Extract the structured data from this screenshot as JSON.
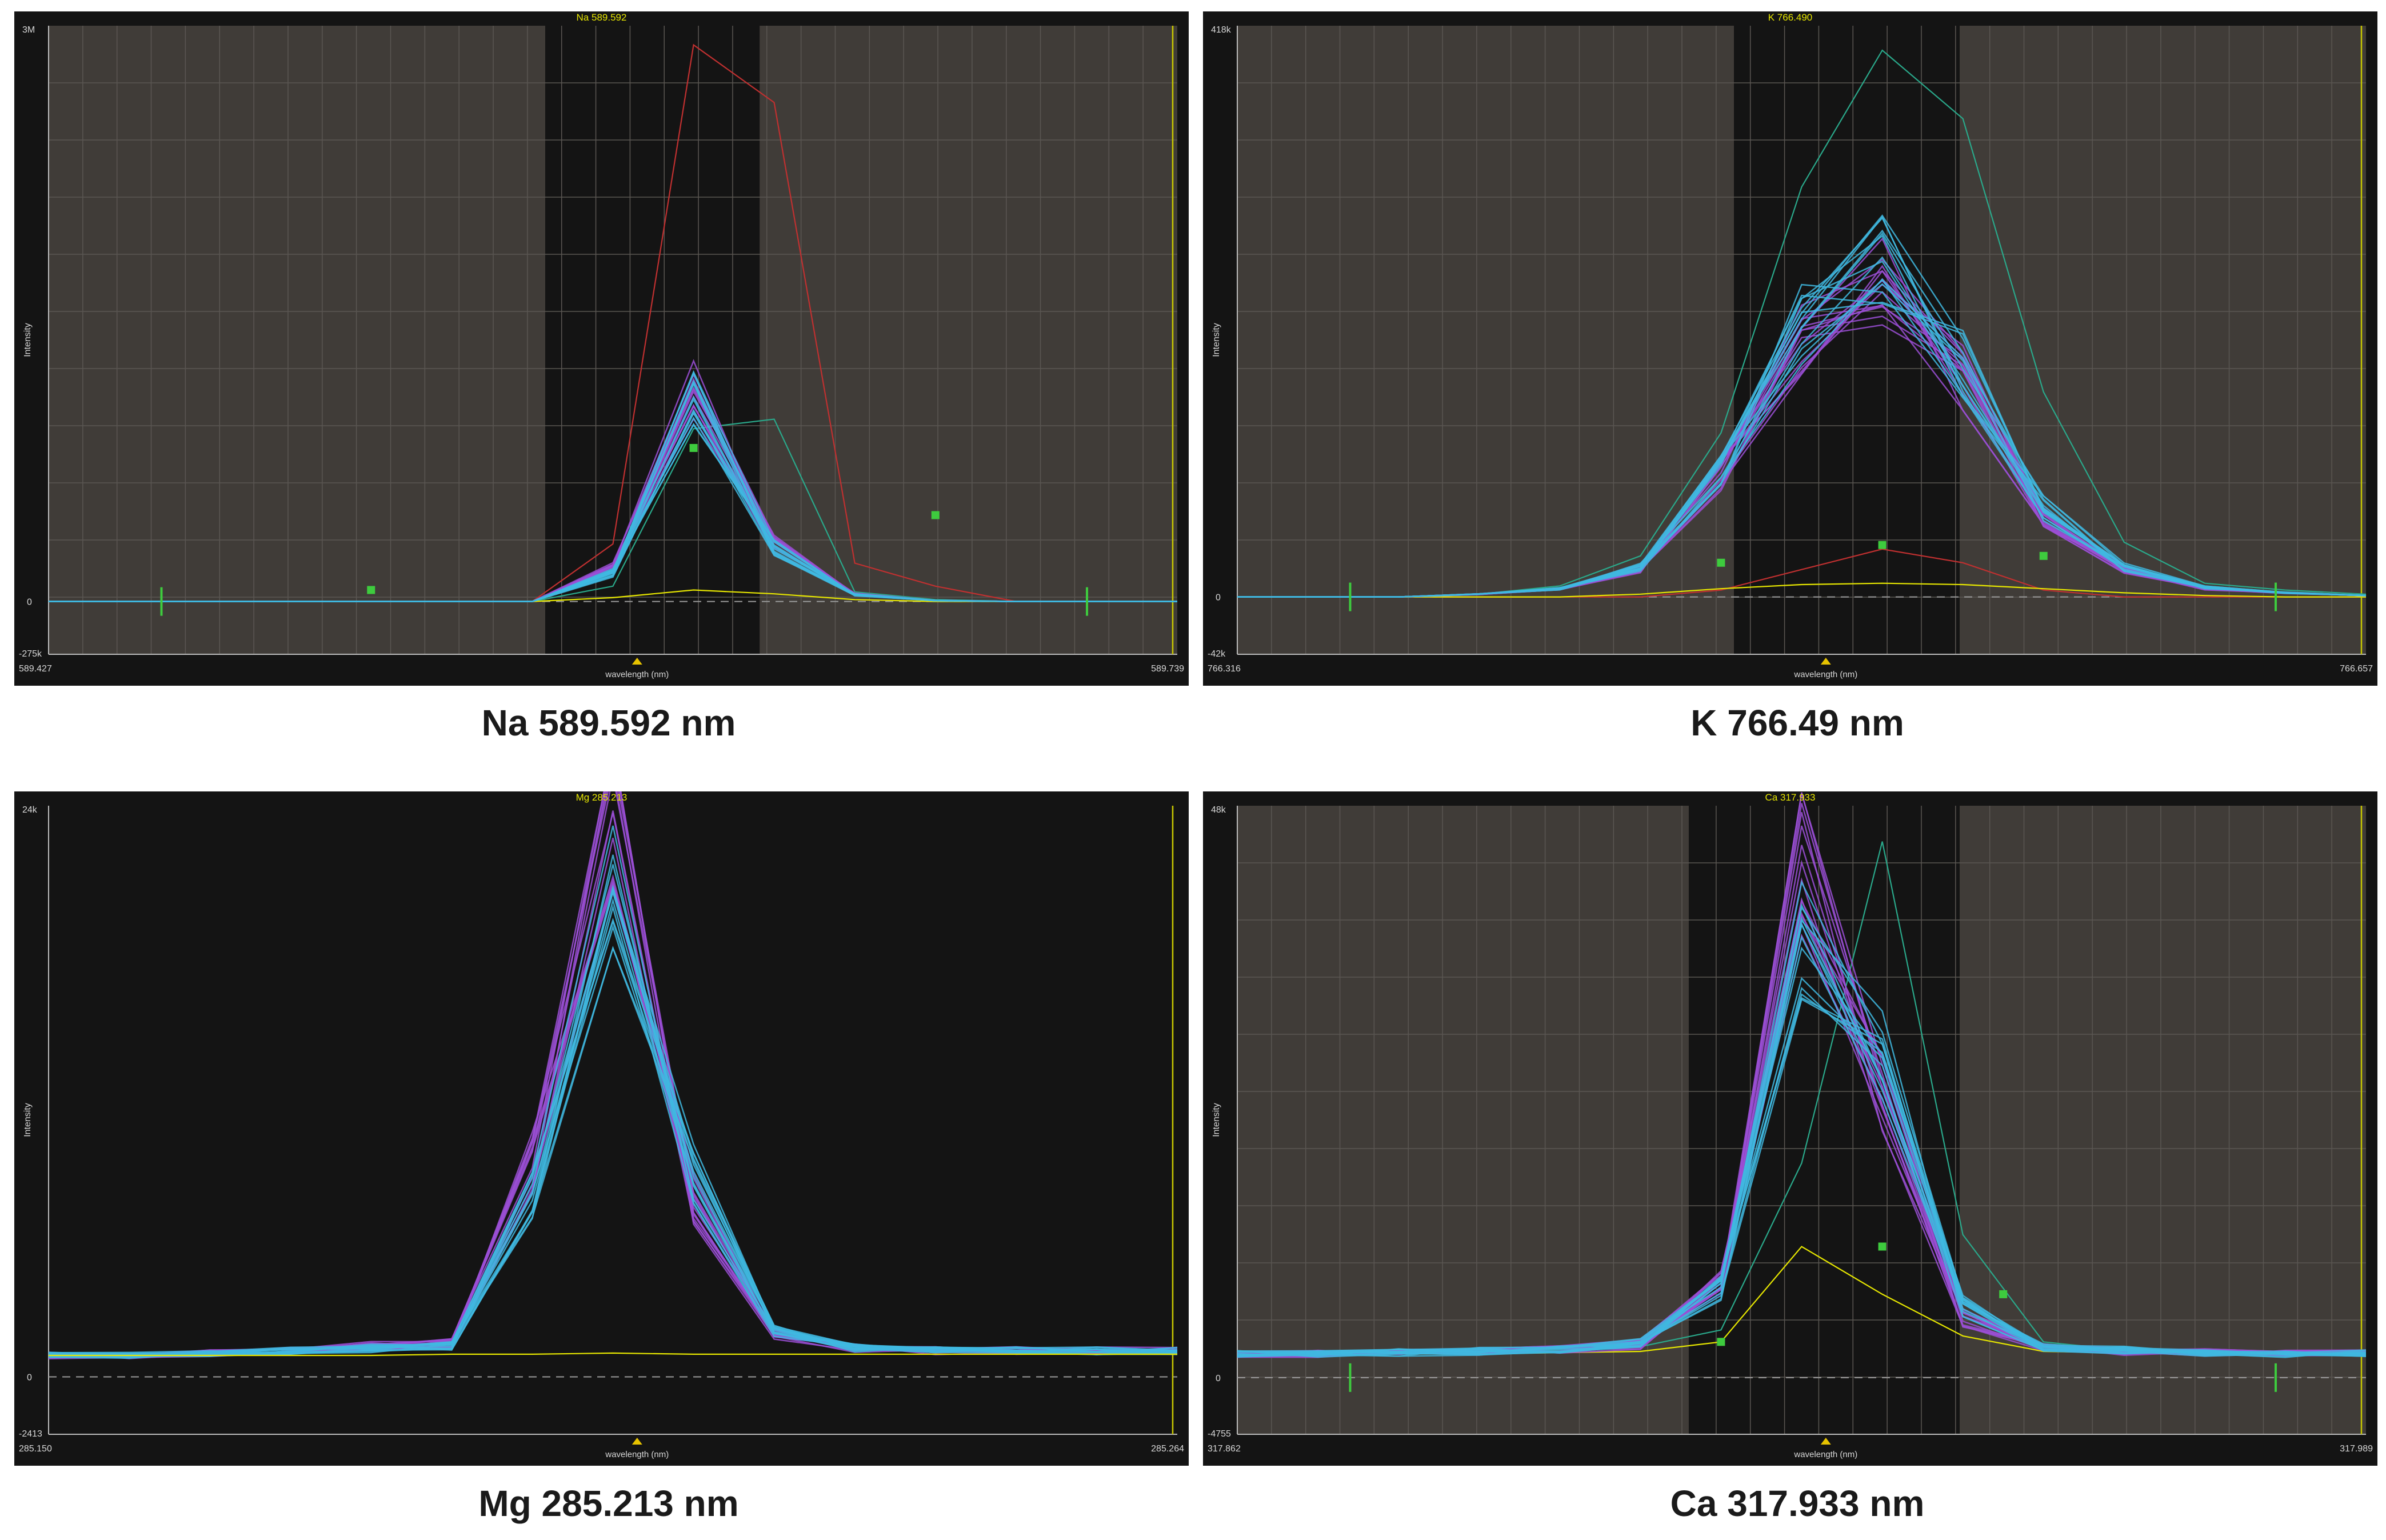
{
  "chart_data": [
    {
      "type": "line",
      "title": "Na 589.592",
      "caption": "Na 589.592 nm",
      "xlabel": "wavelength (nm)",
      "ylabel": "Intensity",
      "xlim": [
        "589.427",
        "589.739"
      ],
      "y_top_label": "3M",
      "y_zero_label": "0",
      "y_bottom_label": "-275k",
      "ylim": [
        -275000,
        3000000
      ],
      "shaded_background": true,
      "window": [
        0.44,
        0.63
      ],
      "n_points": 15,
      "series": [
        {
          "color": "#c03030",
          "role": "outlier",
          "values": [
            0,
            0,
            0,
            0,
            0,
            0,
            0,
            300000,
            2900000,
            2600000,
            200000,
            80000,
            0,
            0,
            0
          ]
        },
        {
          "color": "#2aa88a",
          "role": "outlier",
          "values": [
            0,
            0,
            0,
            0,
            0,
            0,
            0,
            80000,
            900000,
            950000,
            50000,
            10000,
            0,
            0,
            0
          ]
        },
        {
          "color": "#e6e600",
          "role": "blank",
          "values": [
            0,
            0,
            0,
            0,
            0,
            0,
            0,
            20000,
            60000,
            40000,
            10000,
            0,
            0,
            0,
            0
          ]
        },
        {
          "color": "#9b4fd6",
          "role": "replicates",
          "values": [
            0,
            0,
            0,
            0,
            0,
            0,
            0,
            180000,
            1100000,
            300000,
            40000,
            5000,
            0,
            0,
            0
          ]
        },
        {
          "color": "#3fb8e0",
          "role": "replicates",
          "values": [
            0,
            0,
            0,
            0,
            0,
            0,
            0,
            150000,
            1050000,
            280000,
            35000,
            5000,
            0,
            0,
            0
          ]
        }
      ],
      "markers": [
        {
          "x": 8,
          "y": 800000
        },
        {
          "x": 11,
          "y": 450000
        },
        {
          "x": 4,
          "y": 60000
        }
      ]
    },
    {
      "type": "line",
      "title": "K 766.490",
      "caption": "K 766.49 nm",
      "xlabel": "wavelength (nm)",
      "ylabel": "Intensity",
      "xlim": [
        "766.316",
        "766.657"
      ],
      "y_top_label": "418k",
      "y_zero_label": "0",
      "y_bottom_label": "-42k",
      "ylim": [
        -42000,
        418000
      ],
      "shaded_background": true,
      "window": [
        0.44,
        0.64
      ],
      "n_points": 15,
      "series": [
        {
          "color": "#2aa88a",
          "role": "outlier",
          "values": [
            0,
            0,
            0,
            2000,
            8000,
            30000,
            120000,
            300000,
            400000,
            350000,
            150000,
            40000,
            10000,
            5000,
            2000
          ]
        },
        {
          "color": "#c03030",
          "role": "check",
          "values": [
            0,
            0,
            0,
            0,
            0,
            0,
            5000,
            20000,
            35000,
            25000,
            5000,
            0,
            0,
            0,
            0
          ]
        },
        {
          "color": "#e6e600",
          "role": "blank",
          "values": [
            0,
            0,
            0,
            0,
            0,
            2000,
            6000,
            9000,
            10000,
            9000,
            6000,
            3000,
            1000,
            0,
            0
          ]
        },
        {
          "color": "#9b4fd6",
          "role": "replicates",
          "values": [
            0,
            0,
            0,
            2000,
            6000,
            20000,
            90000,
            190000,
            230000,
            160000,
            60000,
            20000,
            6000,
            3000,
            1000
          ]
        },
        {
          "color": "#3fb8e0",
          "role": "replicates",
          "values": [
            0,
            0,
            0,
            2000,
            6000,
            22000,
            95000,
            200000,
            245000,
            170000,
            65000,
            22000,
            7000,
            3000,
            1000
          ]
        }
      ],
      "markers": [
        {
          "x": 6,
          "y": 25000
        },
        {
          "x": 8,
          "y": 38000
        },
        {
          "x": 10,
          "y": 30000
        }
      ]
    },
    {
      "type": "line",
      "title": "Mg 285.213",
      "caption": "Mg 285.213 nm",
      "xlabel": "wavelength (nm)",
      "ylabel": "Intensity",
      "xlim": [
        "285.150",
        "285.264"
      ],
      "y_top_label": "24k",
      "y_zero_label": "0",
      "y_bottom_label": "-2413",
      "ylim": [
        -2413,
        24000
      ],
      "shaded_background": false,
      "window": [],
      "n_points": 15,
      "series": [
        {
          "color": "#9b4fd6",
          "role": "replicates",
          "values": [
            900,
            900,
            1000,
            1100,
            1300,
            1400,
            9000,
            23500,
            7500,
            1800,
            1200,
            1100,
            1100,
            1100,
            1100
          ]
        },
        {
          "color": "#3fb8e0",
          "role": "replicates",
          "values": [
            900,
            900,
            1000,
            1100,
            1200,
            1300,
            7500,
            20500,
            8500,
            1900,
            1200,
            1100,
            1100,
            1100,
            1100
          ]
        },
        {
          "color": "#e6e600",
          "role": "blank",
          "values": [
            900,
            900,
            900,
            900,
            900,
            950,
            950,
            1000,
            950,
            950,
            950,
            950,
            950,
            950,
            950
          ]
        }
      ],
      "markers": []
    },
    {
      "type": "line",
      "title": "Ca 317.933",
      "caption": "Ca 317.933 nm",
      "xlabel": "wavelength (nm)",
      "ylabel": "Intensity",
      "xlim": [
        "317.862",
        "317.989"
      ],
      "y_top_label": "48k",
      "y_zero_label": "0",
      "y_bottom_label": "-4755",
      "ylim": [
        -4755,
        48000
      ],
      "shaded_background": true,
      "window": [
        0.4,
        0.64
      ],
      "n_points": 15,
      "series": [
        {
          "color": "#2aa88a",
          "role": "outlier",
          "values": [
            2000,
            2000,
            2100,
            2200,
            2300,
            2600,
            4000,
            18000,
            45000,
            12000,
            3000,
            2300,
            2100,
            2000,
            2000
          ]
        },
        {
          "color": "#e6e600",
          "role": "blank",
          "values": [
            2000,
            2000,
            2000,
            2000,
            2100,
            2200,
            3000,
            11000,
            7000,
            3500,
            2200,
            2100,
            2000,
            2000,
            2000
          ]
        },
        {
          "color": "#9b4fd6",
          "role": "replicates",
          "values": [
            2000,
            2000,
            2100,
            2200,
            2400,
            2800,
            8000,
            43000,
            24000,
            5000,
            2500,
            2200,
            2100,
            2000,
            2100
          ]
        },
        {
          "color": "#3fb8e0",
          "role": "replicates",
          "values": [
            2000,
            2000,
            2100,
            2200,
            2400,
            2900,
            7500,
            37000,
            27000,
            6000,
            2600,
            2300,
            2100,
            2000,
            2100
          ]
        }
      ],
      "markers": [
        {
          "x": 6,
          "y": 3000
        },
        {
          "x": 8,
          "y": 11000
        },
        {
          "x": 9.5,
          "y": 7000
        }
      ]
    }
  ]
}
